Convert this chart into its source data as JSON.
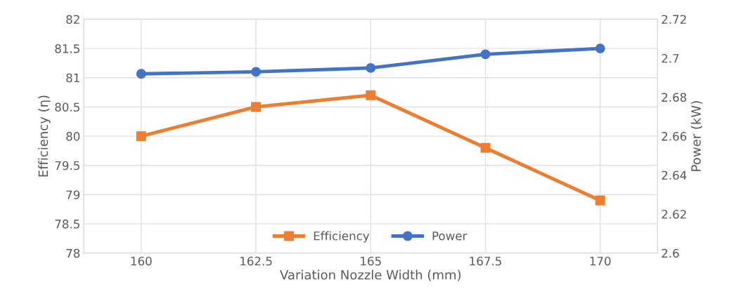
{
  "chart_data": {
    "type": "line",
    "xlabel": "Variation Nozzle Width (mm)",
    "ylabel": "Efficiency (η)",
    "y2label": "Power (kW)",
    "categories": [
      "160",
      "162.5",
      "165",
      "167.5",
      "170"
    ],
    "series": [
      {
        "name": "Efficiency",
        "color": "#ed7d31",
        "marker": "square",
        "values": [
          80.0,
          80.5,
          80.7,
          79.8,
          78.9
        ]
      },
      {
        "name": "Power",
        "color": "#4472c4",
        "marker": "circle",
        "axis": "y2",
        "values": [
          2.692,
          2.693,
          2.695,
          2.702,
          2.705
        ]
      }
    ],
    "ylim": [
      78,
      82
    ],
    "yticks": [
      78,
      78.5,
      79,
      79.5,
      80,
      80.5,
      81,
      81.5,
      82
    ],
    "y2lim": [
      2.6,
      2.72
    ],
    "y2ticks": [
      2.6,
      2.62,
      2.64,
      2.66,
      2.68,
      2.7,
      2.72
    ],
    "grid": true,
    "legend": "bottom",
    "line_style": "solid"
  }
}
